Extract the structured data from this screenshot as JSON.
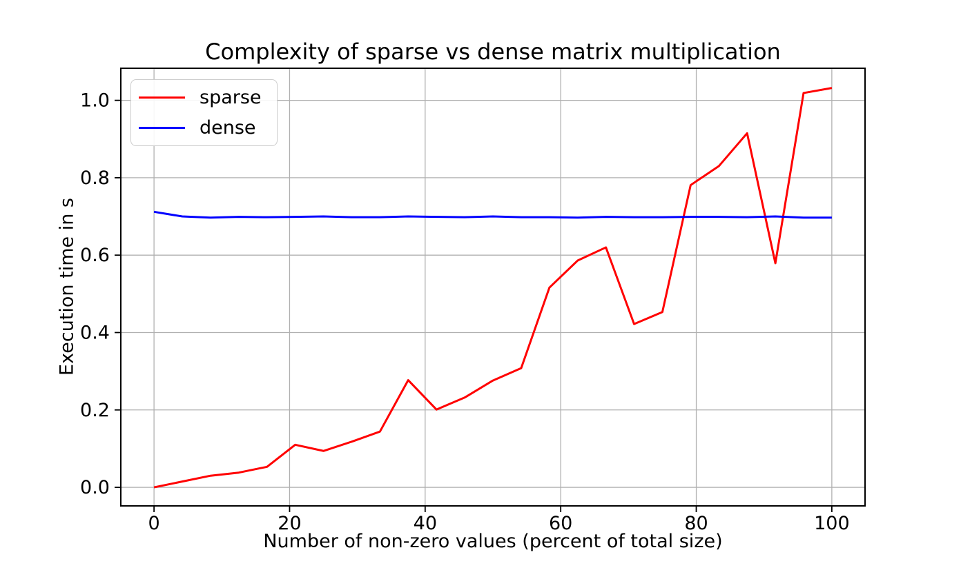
{
  "chart_data": {
    "type": "line",
    "title": "Complexity of sparse vs dense matrix multiplication",
    "xlabel": "Number of non-zero values (percent of total size)",
    "ylabel": "Execution time in s",
    "x": [
      0,
      4.17,
      8.33,
      12.5,
      16.67,
      20.83,
      25,
      29.17,
      33.33,
      37.5,
      41.67,
      45.83,
      50,
      54.17,
      58.33,
      62.5,
      66.67,
      70.83,
      75,
      79.17,
      83.33,
      87.5,
      91.67,
      95.83,
      100
    ],
    "series": [
      {
        "name": "sparse",
        "color": "#ff0000",
        "values": [
          0.0,
          0.015,
          0.03,
          0.038,
          0.053,
          0.11,
          0.094,
          0.118,
          0.144,
          0.277,
          0.201,
          0.232,
          0.276,
          0.308,
          0.516,
          0.586,
          0.62,
          0.422,
          0.453,
          0.781,
          0.83,
          0.915,
          0.579,
          1.019,
          1.032
        ]
      },
      {
        "name": "dense",
        "color": "#0000ff",
        "values": [
          0.712,
          0.7,
          0.697,
          0.699,
          0.698,
          0.699,
          0.7,
          0.698,
          0.698,
          0.7,
          0.699,
          0.698,
          0.7,
          0.698,
          0.698,
          0.697,
          0.699,
          0.698,
          0.698,
          0.699,
          0.699,
          0.698,
          0.7,
          0.697,
          0.697
        ]
      }
    ],
    "xticks": [
      0,
      20,
      40,
      60,
      80,
      100
    ],
    "yticks": [
      0.0,
      0.2,
      0.4,
      0.6,
      0.8,
      1.0
    ],
    "xlim": [
      -4.9,
      104.9
    ],
    "ylim": [
      -0.048,
      1.083
    ],
    "grid": true,
    "legend_position": "upper left"
  }
}
